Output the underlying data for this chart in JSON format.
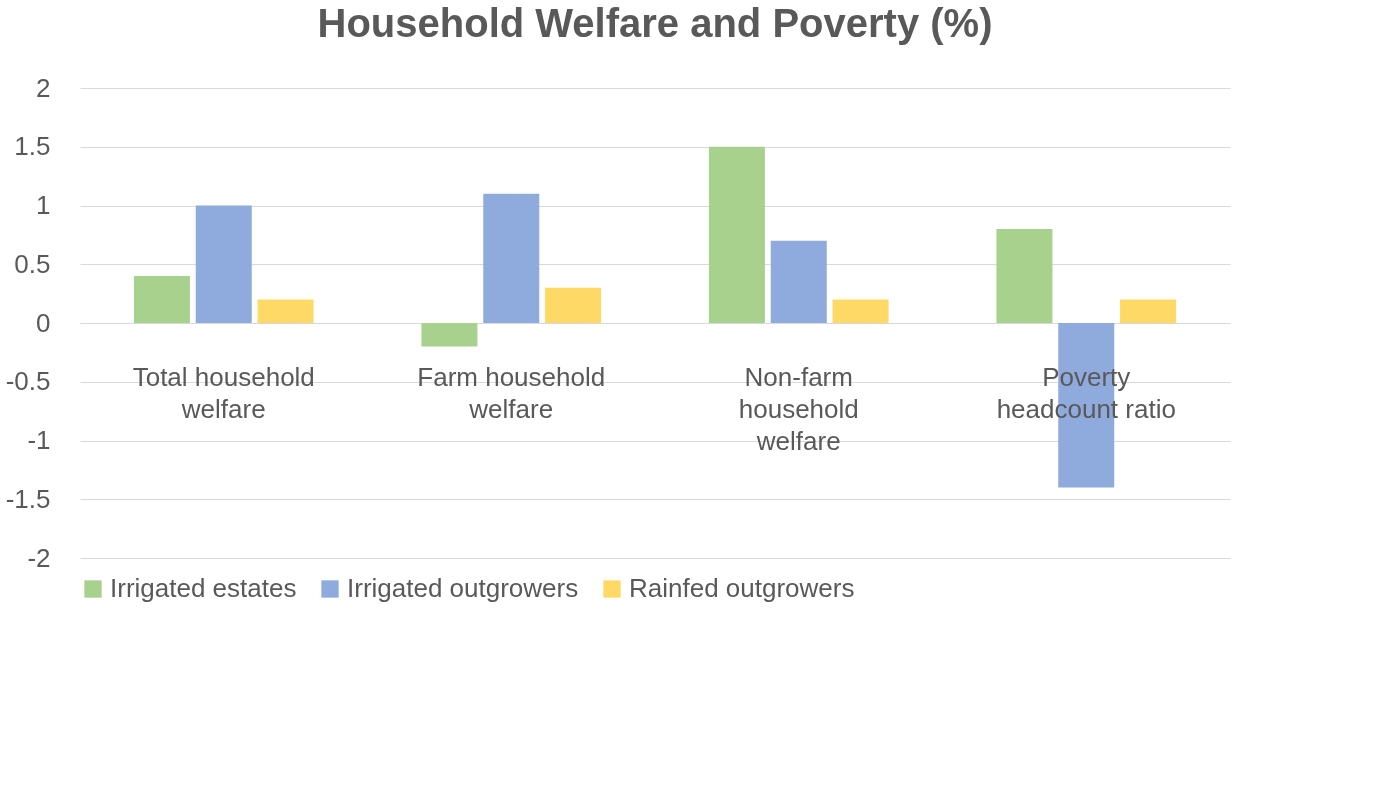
{
  "chart_data": {
    "type": "bar",
    "title": "Household Welfare and Poverty (%)",
    "categories": [
      "Total household welfare",
      "Farm household welfare",
      "Non-farm household welfare",
      "Poverty headcount ratio"
    ],
    "series": [
      {
        "name": "Irrigated estates",
        "color": "#a9d18e",
        "values": [
          0.4,
          -0.2,
          1.5,
          0.8
        ]
      },
      {
        "name": "Irrigated outgrowers",
        "color": "#8faadc",
        "values": [
          1.0,
          1.1,
          0.7,
          -1.4
        ]
      },
      {
        "name": "Rainfed outgrowers",
        "color": "#ffd966",
        "values": [
          0.2,
          0.3,
          0.2,
          0.2
        ]
      }
    ],
    "ylim": [
      -2,
      2
    ],
    "yticks": [
      -2,
      -1.5,
      -1,
      -0.5,
      0,
      0.5,
      1,
      1.5,
      2
    ],
    "grid": "y",
    "legend": "bottom"
  }
}
